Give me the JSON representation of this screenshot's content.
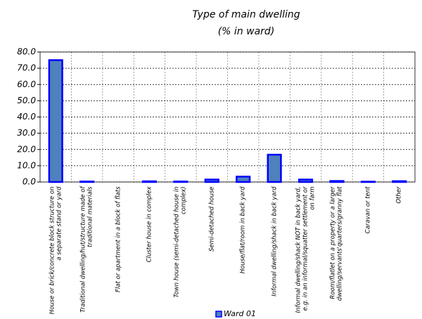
{
  "chart_data": {
    "type": "bar",
    "title": "Type of main dwelling",
    "subtitle": "(% in ward)",
    "categories": [
      "House or brick/concrete block structure on a separate stand or yard",
      "Traditional dwelling/hut/structure made of traditional materials",
      "Flat or apartment in a  block of flats",
      "Cluster house in complex",
      "Town house (semi-detached house in complex)",
      "Semi-detached house",
      "House/flat/room in back yard",
      "Informal dwelling/shack in back yard",
      "Informal dwelling/shack NOT in back yard, e.g. in an informal/squatter settlement or on farm",
      "Room/flatlet on a property or a larger dwelling/servants'quarters/granny flat",
      "Caravan or tent",
      "Other"
    ],
    "series": [
      {
        "name": "Ward 01",
        "color": "#4f81bd",
        "edgecolor": "#0000ff",
        "values": [
          75.0,
          0.3,
          0.0,
          0.4,
          0.3,
          1.5,
          3.3,
          16.8,
          1.5,
          0.6,
          0.2,
          0.5
        ]
      }
    ],
    "ylim": [
      0,
      80
    ],
    "yticks": [
      {
        "value": 0,
        "label": "0.0"
      },
      {
        "value": 10,
        "label": "10.0"
      },
      {
        "value": 20,
        "label": "20.0"
      },
      {
        "value": 30,
        "label": "30.0"
      },
      {
        "value": 40,
        "label": "40.0"
      },
      {
        "value": 50,
        "label": "50.0"
      },
      {
        "value": 60,
        "label": "60.0"
      },
      {
        "value": 70,
        "label": "70.0"
      },
      {
        "value": 80,
        "label": "80.0"
      }
    ],
    "grid": true,
    "legend": "bottom"
  }
}
